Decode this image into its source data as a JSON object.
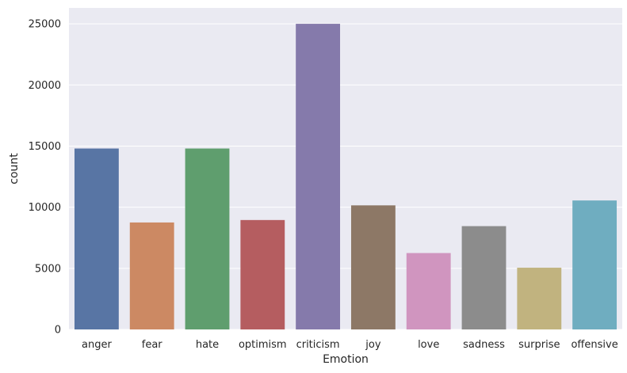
{
  "chart_data": {
    "type": "bar",
    "xlabel": "Emotion",
    "ylabel": "count",
    "ylim": [
      0,
      26300
    ],
    "yticks": [
      0,
      5000,
      10000,
      15000,
      20000,
      25000
    ],
    "grid": true,
    "categories": [
      "anger",
      "fear",
      "hate",
      "optimism",
      "criticism",
      "joy",
      "love",
      "sadness",
      "surprise",
      "offensive"
    ],
    "values": [
      14800,
      8750,
      14800,
      8950,
      25000,
      10150,
      6250,
      8450,
      5050,
      10550
    ],
    "colors": [
      "#5875a4",
      "#cc8963",
      "#5f9e6e",
      "#b55d60",
      "#857aab",
      "#8d7866",
      "#d095bf",
      "#8c8c8c",
      "#c1b37f",
      "#6fadc0"
    ],
    "background": "#eaeaf2"
  }
}
